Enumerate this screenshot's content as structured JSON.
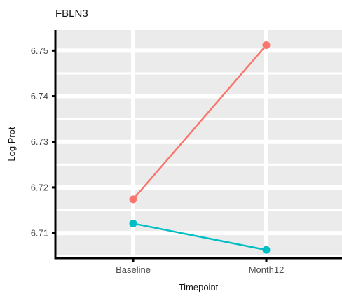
{
  "chart_data": {
    "type": "line",
    "title": "FBLN3",
    "xlabel": "Timepoint",
    "ylabel": "Log Prot",
    "categories": [
      "Baseline",
      "Month12"
    ],
    "series": [
      {
        "color": "#F8766D",
        "values": [
          6.7174,
          6.7512
        ]
      },
      {
        "color": "#00BFC4",
        "values": [
          6.7121,
          6.7063
        ]
      }
    ],
    "yticks": [
      6.71,
      6.72,
      6.73,
      6.74,
      6.75
    ],
    "ylim": [
      6.7045,
      6.7545
    ],
    "grid": true,
    "legend": "none"
  }
}
